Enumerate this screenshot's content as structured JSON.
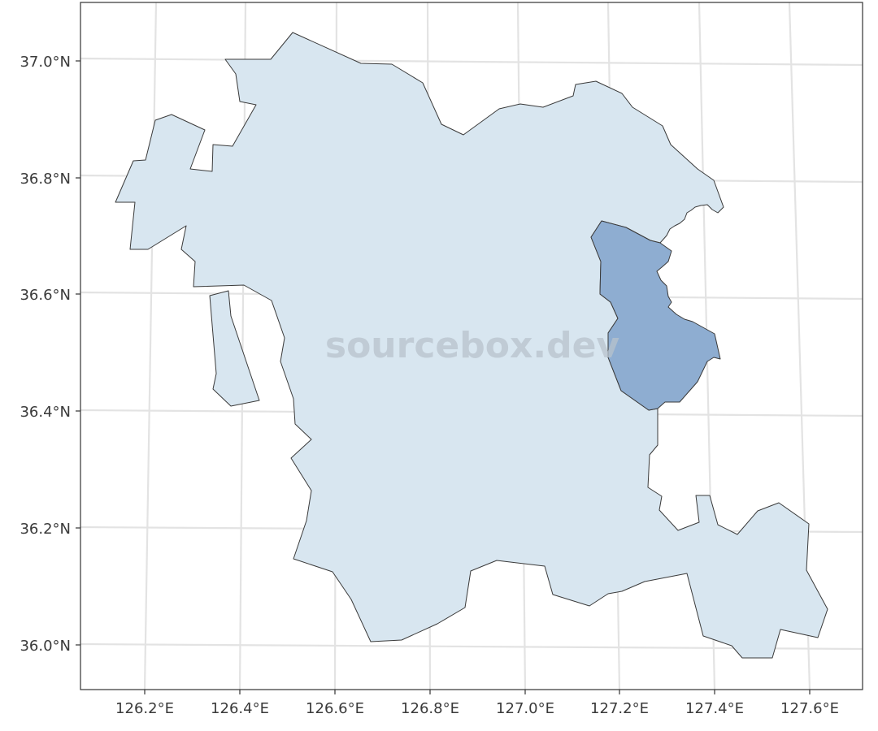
{
  "map": {
    "watermark": "sourcebox.dev",
    "colors": {
      "province_fill": "#d8e6f0",
      "highlight_fill": "#8eadd1",
      "outline": "#3a3a3a",
      "grid": "#e3e3e3",
      "panel_border": "#333333"
    },
    "regions": [
      {
        "name": "province",
        "highlighted": false
      },
      {
        "name": "highlighted-district",
        "highlighted": true
      }
    ],
    "lat_ticks": [
      {
        "value": 37.0,
        "label": "37.0°N"
      },
      {
        "value": 36.8,
        "label": "36.8°N"
      },
      {
        "value": 36.6,
        "label": "36.6°N"
      },
      {
        "value": 36.4,
        "label": "36.4°N"
      },
      {
        "value": 36.2,
        "label": "36.2°N"
      },
      {
        "value": 36.0,
        "label": "36.0°N"
      }
    ],
    "lon_ticks": [
      {
        "value": 126.2,
        "label": "126.2°E"
      },
      {
        "value": 126.4,
        "label": "126.4°E"
      },
      {
        "value": 126.6,
        "label": "126.6°E"
      },
      {
        "value": 126.8,
        "label": "126.8°E"
      },
      {
        "value": 127.0,
        "label": "127.0°E"
      },
      {
        "value": 127.2,
        "label": "127.2°E"
      },
      {
        "value": 127.4,
        "label": "127.4°E"
      },
      {
        "value": 127.6,
        "label": "127.6°E"
      }
    ]
  }
}
